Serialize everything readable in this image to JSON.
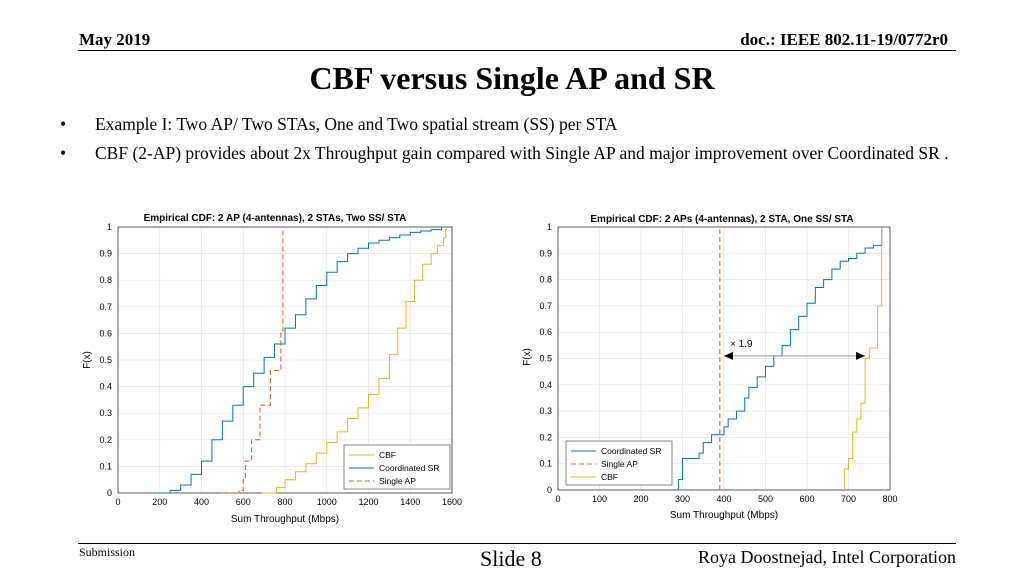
{
  "header": {
    "date": "May 2019",
    "doc_id": "doc.: IEEE 802.11-19/0772r0"
  },
  "slide_title": "CBF versus Single AP and SR",
  "bullets": [
    {
      "marker": "•",
      "text": "Example I: Two AP/ Two STAs, One and Two spatial stream (SS) per STA"
    },
    {
      "marker": "•",
      "text": "CBF (2-AP) provides about 2x Throughput gain compared with Single AP and major improvement over Coordinated SR ."
    }
  ],
  "footer": {
    "left": "Submission",
    "center": "Slide 8",
    "right": "Roya Doostnejad, Intel Corporation"
  },
  "colors": {
    "cbf": "#EDB120",
    "coordinated_sr": "#0072BD",
    "single_ap": "#D95319"
  },
  "chart_data": [
    {
      "type": "line",
      "title": "Empirical CDF: 2 AP (4-antennas), 2 STAs, Two SS/ STA",
      "xlabel": "Sum Throughput (Mbps)",
      "ylabel": "F(x)",
      "xlim": [
        0,
        1600
      ],
      "ylim": [
        0,
        1
      ],
      "xticks": [
        "0",
        "200",
        "400",
        "600",
        "800",
        "1000",
        "1200",
        "1400",
        "1600"
      ],
      "yticks": [
        "0",
        "0.1",
        "0.2",
        "0.3",
        "0.4",
        "0.5",
        "0.6",
        "0.7",
        "0.8",
        "0.9",
        "1"
      ],
      "grid": true,
      "legend_position": "bottom-right",
      "series": [
        {
          "name": "CBF",
          "style": "solid",
          "x": [
            690,
            760,
            800,
            850,
            900,
            950,
            1000,
            1050,
            1100,
            1150,
            1200,
            1250,
            1300,
            1340,
            1380,
            1420,
            1460,
            1500,
            1530,
            1560,
            1570,
            1575
          ],
          "y": [
            0,
            0.02,
            0.05,
            0.08,
            0.11,
            0.15,
            0.19,
            0.23,
            0.28,
            0.32,
            0.37,
            0.43,
            0.52,
            0.62,
            0.72,
            0.8,
            0.86,
            0.9,
            0.93,
            0.96,
            0.99,
            1
          ]
        },
        {
          "name": "Coordinated SR",
          "style": "solid",
          "x": [
            180,
            250,
            300,
            350,
            400,
            450,
            500,
            550,
            600,
            650,
            700,
            750,
            800,
            850,
            900,
            950,
            1000,
            1050,
            1100,
            1150,
            1200,
            1250,
            1300,
            1350,
            1400,
            1450,
            1500,
            1550,
            1570
          ],
          "y": [
            0,
            0.01,
            0.03,
            0.07,
            0.12,
            0.2,
            0.27,
            0.33,
            0.4,
            0.45,
            0.51,
            0.56,
            0.62,
            0.67,
            0.73,
            0.78,
            0.83,
            0.87,
            0.9,
            0.92,
            0.94,
            0.95,
            0.96,
            0.97,
            0.98,
            0.985,
            0.99,
            1,
            1
          ]
        },
        {
          "name": "Single AP",
          "style": "dashed",
          "x": [
            490,
            580,
            600,
            610,
            640,
            680,
            730,
            780,
            790
          ],
          "y": [
            0,
            0.01,
            0.05,
            0.12,
            0.2,
            0.33,
            0.46,
            0.6,
            1
          ]
        }
      ]
    },
    {
      "type": "line",
      "title": "Empirical CDF: 2 APs (4-antennas), 2 STA, One SS/ STA",
      "xlabel": "Sum Throughput (Mbps)",
      "ylabel": "F(x)",
      "xlim": [
        0,
        800
      ],
      "ylim": [
        0,
        1
      ],
      "xticks": [
        "0",
        "100",
        "200",
        "300",
        "400",
        "500",
        "600",
        "700",
        "800"
      ],
      "yticks": [
        "0",
        "0.1",
        "0.2",
        "0.3",
        "0.4",
        "0.5",
        "0.6",
        "0.7",
        "0.8",
        "0.9",
        "1"
      ],
      "grid": true,
      "legend_position": "bottom-left",
      "annotation": "× 1.9",
      "series": [
        {
          "name": "Coordinated SR",
          "style": "solid",
          "x": [
            290,
            300,
            340,
            350,
            370,
            400,
            410,
            430,
            450,
            460,
            480,
            500,
            520,
            540,
            560,
            580,
            600,
            620,
            640,
            660,
            680,
            700,
            720,
            740,
            760,
            780
          ],
          "y": [
            0.04,
            0.12,
            0.14,
            0.18,
            0.21,
            0.24,
            0.27,
            0.3,
            0.35,
            0.39,
            0.43,
            0.47,
            0.51,
            0.55,
            0.61,
            0.66,
            0.71,
            0.77,
            0.8,
            0.84,
            0.87,
            0.88,
            0.9,
            0.92,
            0.93,
            1
          ]
        },
        {
          "name": "Single AP",
          "style": "dashed",
          "x": [
            390,
            390
          ],
          "y": [
            0,
            1
          ]
        },
        {
          "name": "CBF",
          "style": "solid",
          "x": [
            690,
            700,
            710,
            720,
            730,
            740,
            750,
            760,
            770,
            780
          ],
          "y": [
            0.08,
            0.12,
            0.22,
            0.27,
            0.33,
            0.5,
            0.54,
            0.54,
            0.7,
            1
          ]
        }
      ]
    }
  ]
}
